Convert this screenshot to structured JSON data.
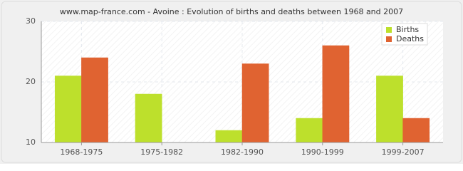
{
  "chart_data": {
    "type": "bar",
    "title": "www.map-france.com - Avoine : Evolution of births and deaths between 1968 and 2007",
    "categories": [
      "1968-1975",
      "1975-1982",
      "1982-1990",
      "1990-1999",
      "1999-2007"
    ],
    "series": [
      {
        "name": "Births",
        "color": "#bde02c",
        "values": [
          21,
          18,
          12,
          14,
          21
        ]
      },
      {
        "name": "Deaths",
        "color": "#e06331",
        "values": [
          24,
          10,
          23,
          26,
          14
        ]
      }
    ],
    "ylim": [
      10,
      30
    ],
    "yticks": [
      10,
      20,
      30
    ],
    "grid": true,
    "legend": "top-right"
  }
}
